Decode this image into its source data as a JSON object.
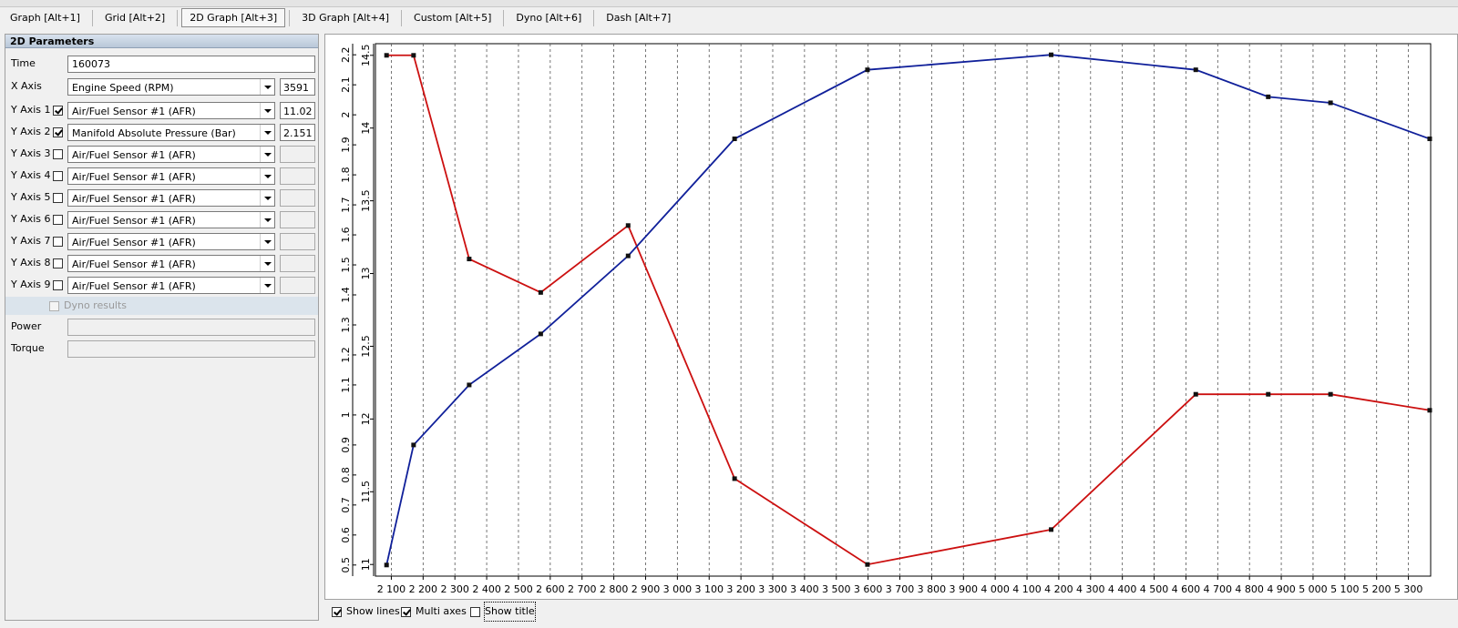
{
  "tabs": [
    "Graph [Alt+1]",
    "Grid [Alt+2]",
    "2D Graph [Alt+3]",
    "3D Graph [Alt+4]",
    "Custom [Alt+5]",
    "Dyno [Alt+6]",
    "Dash [Alt+7]"
  ],
  "active_tab": 2,
  "panel": {
    "title": "2D Parameters",
    "time": {
      "label": "Time",
      "value": 160073
    },
    "x_axis": {
      "label": "X Axis",
      "selection": "Engine Speed (RPM)",
      "value": 3591
    },
    "y_axes": [
      {
        "label": "Y Axis 1",
        "checked": true,
        "selection": "Air/Fuel Sensor #1 (AFR)",
        "value": 11.02
      },
      {
        "label": "Y Axis 2",
        "checked": true,
        "selection": "Manifold Absolute Pressure (Bar)",
        "value": 2.151
      },
      {
        "label": "Y Axis 3",
        "checked": false,
        "selection": "Air/Fuel Sensor #1 (AFR)"
      },
      {
        "label": "Y Axis 4",
        "checked": false,
        "selection": "Air/Fuel Sensor #1 (AFR)"
      },
      {
        "label": "Y Axis 5",
        "checked": false,
        "selection": "Air/Fuel Sensor #1 (AFR)"
      },
      {
        "label": "Y Axis 6",
        "checked": false,
        "selection": "Air/Fuel Sensor #1 (AFR)"
      },
      {
        "label": "Y Axis 7",
        "checked": false,
        "selection": "Air/Fuel Sensor #1 (AFR)"
      },
      {
        "label": "Y Axis 8",
        "checked": false,
        "selection": "Air/Fuel Sensor #1 (AFR)"
      },
      {
        "label": "Y Axis 9",
        "checked": false,
        "selection": "Air/Fuel Sensor #1 (AFR)"
      }
    ],
    "dyno": {
      "label": "Dyno results",
      "checked": false
    },
    "power": {
      "label": "Power"
    },
    "torque": {
      "label": "Torque"
    }
  },
  "chart_data": {
    "type": "line",
    "x": [
      2085,
      2170,
      2345,
      2570,
      2845,
      3180,
      3598,
      4176,
      4631,
      4859,
      5055,
      5367
    ],
    "xlim": [
      2050,
      5370
    ],
    "xticks": [
      {
        "value": 2100,
        "label": "2 100"
      },
      {
        "value": 2200,
        "label": "2 200"
      },
      {
        "value": 2300,
        "label": "2 300"
      },
      {
        "value": 2400,
        "label": "2 400"
      },
      {
        "value": 2500,
        "label": "2 500"
      },
      {
        "value": 2600,
        "label": "2 600"
      },
      {
        "value": 2700,
        "label": "2 700"
      },
      {
        "value": 2800,
        "label": "2 800"
      },
      {
        "value": 2900,
        "label": "2 900"
      },
      {
        "value": 3000,
        "label": "3 000"
      },
      {
        "value": 3100,
        "label": "3 100"
      },
      {
        "value": 3200,
        "label": "3 200"
      },
      {
        "value": 3300,
        "label": "3 300"
      },
      {
        "value": 3400,
        "label": "3 400"
      },
      {
        "value": 3500,
        "label": "3 500"
      },
      {
        "value": 3600,
        "label": "3 600"
      },
      {
        "value": 3700,
        "label": "3 700"
      },
      {
        "value": 3800,
        "label": "3 800"
      },
      {
        "value": 3900,
        "label": "3 900"
      },
      {
        "value": 4000,
        "label": "4 000"
      },
      {
        "value": 4100,
        "label": "4 100"
      },
      {
        "value": 4200,
        "label": "4 200"
      },
      {
        "value": 4300,
        "label": "4 300"
      },
      {
        "value": 4400,
        "label": "4 400"
      },
      {
        "value": 4500,
        "label": "4 500"
      },
      {
        "value": 4600,
        "label": "4 600"
      },
      {
        "value": 4700,
        "label": "4 700"
      },
      {
        "value": 4800,
        "label": "4 800"
      },
      {
        "value": 4900,
        "label": "4 900"
      },
      {
        "value": 5000,
        "label": "5 000"
      },
      {
        "value": 5100,
        "label": "5 100"
      },
      {
        "value": 5200,
        "label": "5 200"
      },
      {
        "value": 5300,
        "label": "5 300"
      }
    ],
    "ylim": [
      10.92,
      14.58
    ],
    "yticks": [
      11,
      11.5,
      12,
      12.5,
      13,
      13.5,
      14,
      14.5
    ],
    "y2lim": [
      0.463,
      2.237
    ],
    "y2ticks": [
      0.5,
      0.6,
      0.7,
      0.8,
      0.9,
      1,
      1.1,
      1.2,
      1.3,
      1.4,
      1.5,
      1.6,
      1.7,
      1.8,
      1.9,
      2,
      2.1,
      2.2
    ],
    "grid": "x",
    "series": [
      {
        "color": "#cc1010",
        "values": [
          14.5,
          14.5,
          13.1,
          12.87,
          13.33,
          11.59,
          11.0,
          11.24,
          12.17,
          12.17,
          12.17,
          12.06
        ]
      },
      {
        "color": "#10209a",
        "axis": "y2",
        "values": [
          0.5,
          0.9,
          1.1,
          1.27,
          1.53,
          1.92,
          2.15,
          2.2,
          2.15,
          2.06,
          2.04,
          1.92
        ]
      }
    ]
  },
  "options": [
    {
      "label": "Show lines",
      "checked": true
    },
    {
      "label": "Multi axes",
      "checked": true
    },
    {
      "label": "Show title",
      "checked": false
    }
  ]
}
